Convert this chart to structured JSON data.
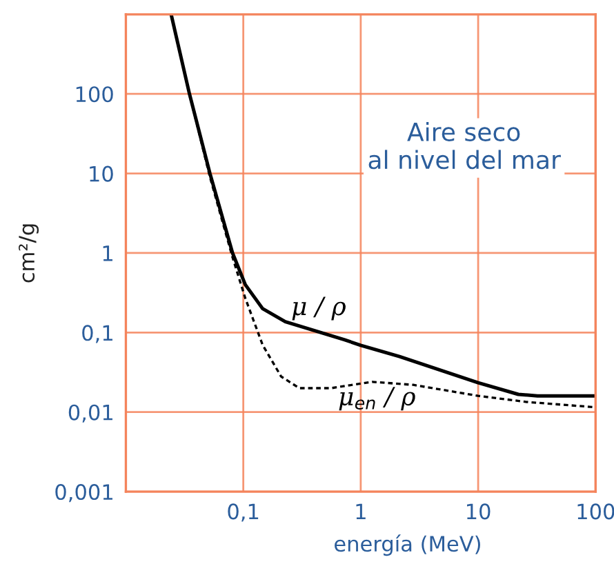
{
  "chart_data": {
    "type": "line",
    "xlabel": "energía (MeV)",
    "ylabel": "cm²/g",
    "log": "xy",
    "xlim": [
      0.01,
      100
    ],
    "ylim": [
      0.001,
      1000
    ],
    "xticks": [
      {
        "value": 0.1,
        "label": "0,1"
      },
      1,
      10,
      100
    ],
    "yticks": [
      {
        "value": 0.001,
        "label": "0,001"
      },
      {
        "value": 0.01,
        "label": "0,01"
      },
      {
        "value": 0.1,
        "label": "0,1"
      },
      1,
      10,
      100
    ],
    "grid": true,
    "legend": false,
    "annotations": [
      "Aire seco\nal nivel del mar"
    ],
    "series": [
      {
        "name": "μ / ρ",
        "color": "#000000",
        "line_style": "solid",
        "x": [
          0.0243,
          0.0348,
          0.052,
          0.081,
          0.104,
          0.146,
          0.228,
          0.73,
          1,
          2.14,
          10,
          22,
          32,
          100
        ],
        "values": [
          1000,
          100,
          10,
          1,
          0.4,
          0.2,
          0.137,
          0.081,
          0.069,
          0.05,
          0.0234,
          0.0167,
          0.016,
          0.016
        ]
      },
      {
        "name": "μ$_{en}$ / ρ",
        "color": "#000000",
        "line_style": "dotted",
        "x": [
          0.0243,
          0.0348,
          0.052,
          0.081,
          0.104,
          0.146,
          0.21,
          0.3,
          0.56,
          1.25,
          2.8,
          10,
          26,
          100
        ],
        "values": [
          1000,
          100,
          9,
          0.88,
          0.27,
          0.07,
          0.028,
          0.02,
          0.02,
          0.024,
          0.022,
          0.016,
          0.0134,
          0.0115
        ]
      }
    ]
  }
}
